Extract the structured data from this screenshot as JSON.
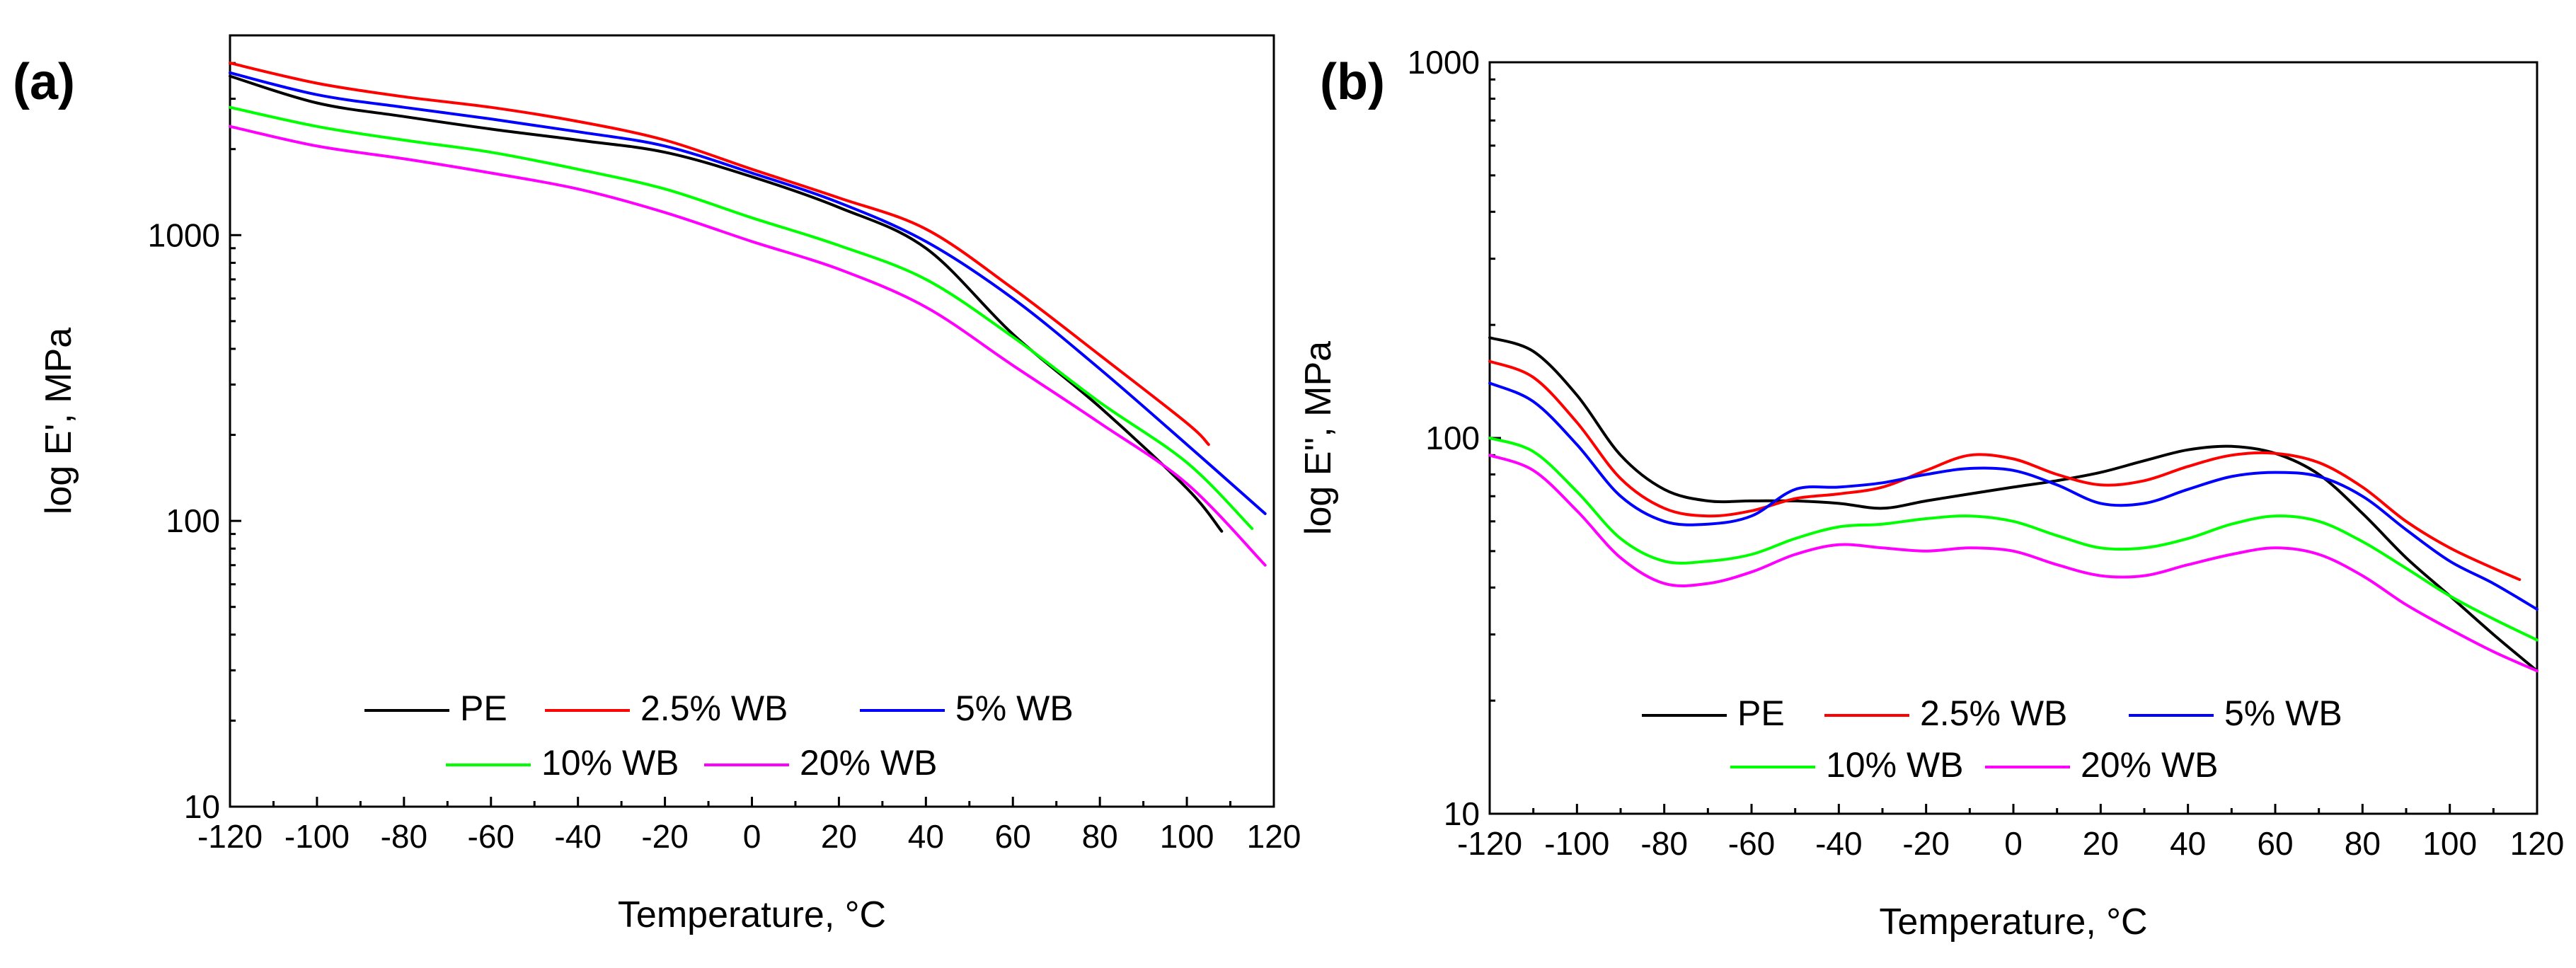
{
  "chart_data": [
    {
      "type": "line",
      "panel_label": "(a)",
      "xlabel": "Temperature, °C",
      "ylabel": "log E', MPa",
      "yscale": "log",
      "xlim": [
        -120,
        120
      ],
      "ylim": [
        10,
        5000
      ],
      "x_ticks": [
        -120,
        -100,
        -80,
        -60,
        -40,
        -20,
        0,
        20,
        40,
        60,
        80,
        100,
        120
      ],
      "x_tick_labels": [
        "-120",
        "-100",
        "-80",
        "-60",
        "-40",
        "-20",
        "0",
        "20",
        "40",
        "60",
        "80",
        "100",
        "120"
      ],
      "y_ticks": [
        10,
        100,
        1000
      ],
      "y_tick_labels": [
        "10",
        "100",
        "1000"
      ],
      "legend_position": "bottom-center",
      "series": [
        {
          "name": "PE",
          "color": "#000000",
          "x": [
            -120,
            -100,
            -80,
            -60,
            -40,
            -20,
            0,
            20,
            40,
            60,
            80,
            100,
            108
          ],
          "y": [
            3600,
            2900,
            2600,
            2350,
            2150,
            1950,
            1600,
            1250,
            900,
            450,
            250,
            130,
            92
          ]
        },
        {
          "name": "2.5% WB",
          "color": "#ff0000",
          "x": [
            -120,
            -100,
            -80,
            -60,
            -40,
            -20,
            0,
            20,
            40,
            60,
            80,
            100,
            105
          ],
          "y": [
            4000,
            3400,
            3050,
            2800,
            2500,
            2150,
            1700,
            1350,
            1050,
            650,
            380,
            220,
            185
          ]
        },
        {
          "name": "5% WB",
          "color": "#0000ff",
          "x": [
            -120,
            -100,
            -80,
            -60,
            -40,
            -20,
            0,
            20,
            40,
            60,
            80,
            100,
            118
          ],
          "y": [
            3700,
            3100,
            2800,
            2550,
            2300,
            2050,
            1650,
            1300,
            950,
            600,
            340,
            185,
            106
          ]
        },
        {
          "name": "10% WB",
          "color": "#00ff00",
          "x": [
            -120,
            -100,
            -80,
            -60,
            -40,
            -20,
            0,
            20,
            40,
            60,
            80,
            100,
            115
          ],
          "y": [
            2800,
            2400,
            2150,
            1950,
            1700,
            1450,
            1150,
            920,
            700,
            440,
            260,
            160,
            94
          ]
        },
        {
          "name": "20% WB",
          "color": "#ff00ff",
          "x": [
            -120,
            -100,
            -80,
            -60,
            -40,
            -20,
            0,
            20,
            40,
            60,
            80,
            100,
            118
          ],
          "y": [
            2400,
            2050,
            1850,
            1650,
            1450,
            1200,
            950,
            760,
            560,
            350,
            220,
            135,
            70
          ]
        }
      ]
    },
    {
      "type": "line",
      "panel_label": "(b)",
      "xlabel": "Temperature, °C",
      "ylabel": "log E'', MPa",
      "yscale": "log",
      "xlim": [
        -120,
        120
      ],
      "ylim": [
        10,
        1000
      ],
      "x_ticks": [
        -120,
        -100,
        -80,
        -60,
        -40,
        -20,
        0,
        20,
        40,
        60,
        80,
        100,
        120
      ],
      "x_tick_labels": [
        "-120",
        "-100",
        "-80",
        "-60",
        "-40",
        "-20",
        "0",
        "20",
        "40",
        "60",
        "80",
        "100",
        "120"
      ],
      "y_ticks": [
        10,
        100,
        1000
      ],
      "y_tick_labels": [
        "10",
        "100",
        "1000"
      ],
      "legend_position": "bottom-center",
      "series": [
        {
          "name": "PE",
          "color": "#000000",
          "x": [
            -120,
            -110,
            -100,
            -90,
            -80,
            -70,
            -60,
            -50,
            -40,
            -30,
            -20,
            -10,
            0,
            10,
            20,
            30,
            40,
            50,
            60,
            70,
            80,
            90,
            100,
            110,
            120
          ],
          "y": [
            185,
            170,
            130,
            90,
            73,
            68,
            68,
            68,
            67,
            65,
            68,
            71,
            74,
            77,
            81,
            87,
            93,
            95,
            91,
            80,
            63,
            48,
            38,
            30,
            24
          ]
        },
        {
          "name": "2.5% WB",
          "color": "#ff0000",
          "x": [
            -120,
            -110,
            -100,
            -90,
            -80,
            -70,
            -60,
            -50,
            -40,
            -30,
            -20,
            -10,
            0,
            10,
            20,
            30,
            40,
            50,
            60,
            70,
            80,
            90,
            100,
            110,
            116
          ],
          "y": [
            160,
            145,
            110,
            78,
            65,
            62,
            64,
            69,
            71,
            74,
            82,
            90,
            88,
            80,
            75,
            77,
            84,
            90,
            91,
            86,
            74,
            60,
            51,
            45,
            42
          ]
        },
        {
          "name": "5% WB",
          "color": "#0000ff",
          "x": [
            -120,
            -110,
            -100,
            -90,
            -80,
            -70,
            -60,
            -50,
            -40,
            -30,
            -20,
            -10,
            0,
            10,
            20,
            30,
            40,
            50,
            60,
            70,
            80,
            90,
            100,
            110,
            120
          ],
          "y": [
            140,
            125,
            96,
            70,
            60,
            59,
            62,
            73,
            74,
            76,
            80,
            83,
            82,
            75,
            67,
            67,
            73,
            79,
            81,
            79,
            70,
            57,
            47,
            41,
            35
          ]
        },
        {
          "name": "10% WB",
          "color": "#00ff00",
          "x": [
            -120,
            -110,
            -100,
            -90,
            -80,
            -70,
            -60,
            -50,
            -40,
            -30,
            -20,
            -10,
            0,
            10,
            20,
            30,
            40,
            50,
            60,
            70,
            80,
            90,
            100,
            110,
            120
          ],
          "y": [
            100,
            92,
            72,
            54,
            47,
            47,
            49,
            54,
            58,
            59,
            61,
            62,
            60,
            55,
            51,
            51,
            54,
            59,
            62,
            60,
            53,
            45,
            38,
            33,
            29
          ]
        },
        {
          "name": "20% WB",
          "color": "#ff00ff",
          "x": [
            -120,
            -110,
            -100,
            -90,
            -80,
            -70,
            -60,
            -50,
            -40,
            -30,
            -20,
            -10,
            0,
            10,
            20,
            30,
            40,
            50,
            60,
            70,
            80,
            90,
            100,
            110,
            120
          ],
          "y": [
            90,
            82,
            64,
            48,
            41,
            41,
            44,
            49,
            52,
            51,
            50,
            51,
            50,
            46,
            43,
            43,
            46,
            49,
            51,
            49,
            43,
            36,
            31,
            27,
            24
          ]
        }
      ]
    }
  ]
}
